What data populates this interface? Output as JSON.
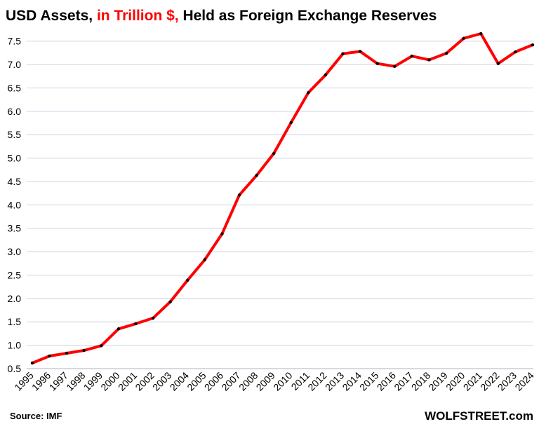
{
  "chart_data": {
    "type": "line",
    "title_parts": [
      {
        "text": "USD Assets, ",
        "color": "#000000"
      },
      {
        "text": "in Trillion $,",
        "color": "#ff0000"
      },
      {
        "text": " Held as Foreign Exchange Reserves",
        "color": "#000000"
      }
    ],
    "x": [
      "1995",
      "1996",
      "1997",
      "1998",
      "1999",
      "2000",
      "2001",
      "2002",
      "2003",
      "2004",
      "2005",
      "2006",
      "2007",
      "2008",
      "2009",
      "2010",
      "2011",
      "2012",
      "2013",
      "2014",
      "2015",
      "2016",
      "2017",
      "2018",
      "2019",
      "2020",
      "2021",
      "2022",
      "2023",
      "2024"
    ],
    "series": [
      {
        "values": [
          0.62,
          0.77,
          0.83,
          0.89,
          0.99,
          1.35,
          1.46,
          1.58,
          1.93,
          2.39,
          2.83,
          3.38,
          4.21,
          4.63,
          5.1,
          5.76,
          6.4,
          6.78,
          7.23,
          7.28,
          7.02,
          6.96,
          7.18,
          7.1,
          7.24,
          7.56,
          7.66,
          7.02,
          7.27,
          7.42
        ],
        "color": "#ff0000",
        "marker_color": "#000000"
      }
    ],
    "yticks": [
      "0.5",
      "1.0",
      "1.5",
      "2.0",
      "2.5",
      "3.0",
      "3.5",
      "4.0",
      "4.5",
      "5.0",
      "5.5",
      "6.0",
      "6.5",
      "7.0",
      "7.5"
    ],
    "ylim": [
      0.5,
      7.75
    ],
    "grid": true,
    "grid_color": "#c9d3e0",
    "source": "Source: IMF",
    "brand": "WOLFSTREET.com"
  }
}
